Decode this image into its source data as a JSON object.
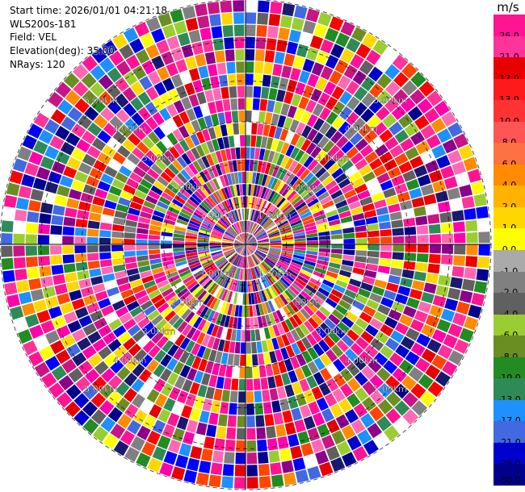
{
  "info": {
    "start_time": "Start time: 2026/01/01 04:21:18",
    "instrument": "WLS200s-181",
    "field": "Field: VEL",
    "elevation": "Elevation(deg): 35.00",
    "nrays": "NRays: 120"
  },
  "colorbar": {
    "unit": "m/s",
    "ticks": [
      "26.0",
      "21.0",
      "17.0",
      "13.0",
      "10.0",
      "8.0",
      "6.0",
      "4.0",
      "2.0",
      "1.0",
      "0.0",
      "-1.0",
      "-2.0",
      "-4.0",
      "-6.0",
      "-8.0",
      "-10.0",
      "-13.0",
      "-17.0",
      "-21.0",
      "-26.0",
      "-30.0"
    ],
    "colors": [
      "#ff1493",
      "#ff3399",
      "#e60000",
      "#ff1a1a",
      "#ff3333",
      "#ff5555",
      "#ff7043",
      "#ff8c00",
      "#ffb300",
      "#ffd700",
      "#ffff00",
      "#aaaaaa",
      "#808080",
      "#606060",
      "#9acd32",
      "#6b8e23",
      "#228b22",
      "#2e8b57",
      "#1e90ff",
      "#4169e1",
      "#0000cd",
      "#00008b",
      "#000080",
      "#191970"
    ]
  },
  "chart_data": {
    "type": "heatmap",
    "projection": "polar PPI",
    "field": "VEL",
    "units": "m/s",
    "n_rays": 120,
    "n_gates": 20,
    "max_range_km": 6.0,
    "range_rings_km": [
      1.0,
      2.0,
      3.0,
      4.0,
      5.0,
      6.0
    ],
    "ring_labels": [
      "1.00km",
      "2.00km",
      "3.00km",
      "4.00km",
      "5.00km"
    ],
    "label_bearings_deg": [
      45,
      135,
      225,
      315
    ],
    "value_range": [
      -30,
      30
    ]
  }
}
